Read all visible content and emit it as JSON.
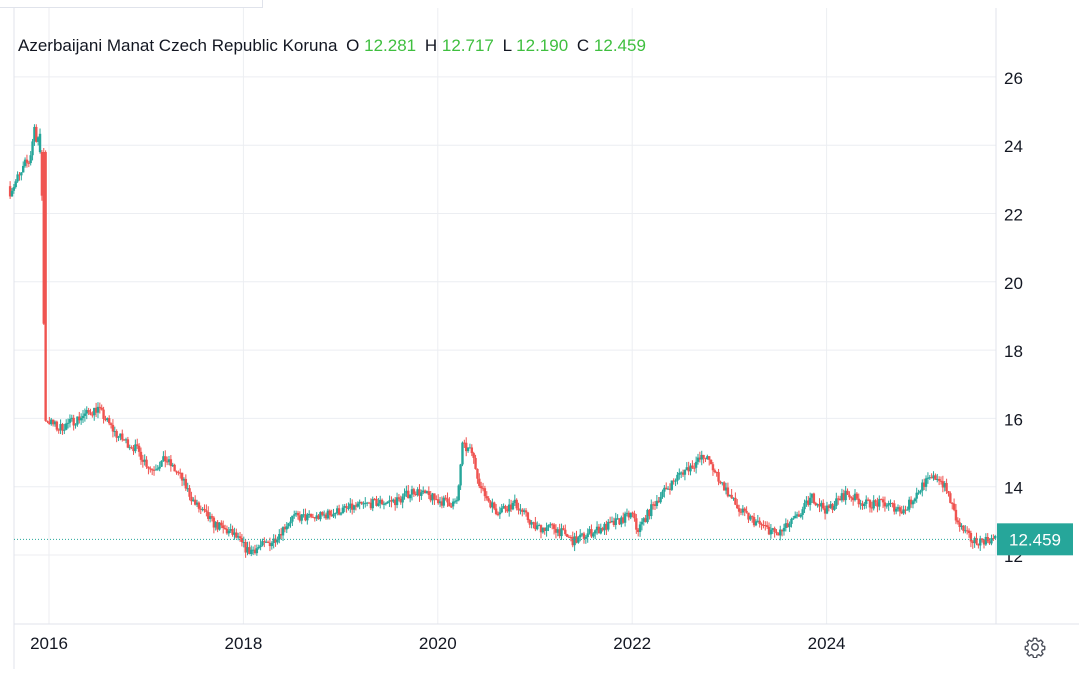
{
  "legend": {
    "symbol": "Azerbaijani Manat Czech Republic Koruna",
    "o_label": "O",
    "o_value": "12.281",
    "h_label": "H",
    "h_value": "12.717",
    "l_label": "L",
    "l_value": "12.190",
    "c_label": "C",
    "c_value": "12.459"
  },
  "last_price_label": "12.459",
  "icons": {
    "settings": "gear-icon"
  },
  "colors": {
    "up": "#26a69a",
    "down": "#ef5350",
    "legend_values": "#3fbf3f",
    "grid": "#eceef2"
  },
  "chart_data": {
    "type": "candlestick",
    "y_ticks": [
      "26",
      "24",
      "22",
      "20",
      "18",
      "16",
      "14",
      "12"
    ],
    "x_ticks": [
      "2016",
      "2018",
      "2020",
      "2022",
      "2024"
    ],
    "ylim": [
      10.0,
      28.0
    ],
    "xlim": [
      2015.6,
      2025.75
    ],
    "last_value": 12.459,
    "grid": true,
    "series_keyframes": [
      [
        2015.6,
        22.8
      ],
      [
        2015.7,
        23.0
      ],
      [
        2015.8,
        23.6
      ],
      [
        2015.85,
        24.5
      ],
      [
        2015.92,
        24.0
      ],
      [
        2015.96,
        16.0
      ],
      [
        2016.1,
        15.7
      ],
      [
        2016.3,
        16.0
      ],
      [
        2016.5,
        16.3
      ],
      [
        2016.7,
        15.5
      ],
      [
        2016.9,
        15.1
      ],
      [
        2017.05,
        14.5
      ],
      [
        2017.2,
        14.8
      ],
      [
        2017.35,
        14.3
      ],
      [
        2017.5,
        13.5
      ],
      [
        2017.7,
        12.9
      ],
      [
        2017.9,
        12.6
      ],
      [
        2018.05,
        12.1
      ],
      [
        2018.3,
        12.4
      ],
      [
        2018.5,
        13.1
      ],
      [
        2018.75,
        13.1
      ],
      [
        2019.0,
        13.3
      ],
      [
        2019.3,
        13.5
      ],
      [
        2019.6,
        13.6
      ],
      [
        2019.75,
        13.9
      ],
      [
        2020.0,
        13.6
      ],
      [
        2020.2,
        13.5
      ],
      [
        2020.25,
        15.2
      ],
      [
        2020.35,
        15.0
      ],
      [
        2020.45,
        13.9
      ],
      [
        2020.6,
        13.3
      ],
      [
        2020.8,
        13.5
      ],
      [
        2021.0,
        12.8
      ],
      [
        2021.2,
        12.8
      ],
      [
        2021.4,
        12.4
      ],
      [
        2021.6,
        12.7
      ],
      [
        2021.8,
        12.9
      ],
      [
        2022.0,
        13.2
      ],
      [
        2022.05,
        12.7
      ],
      [
        2022.25,
        13.6
      ],
      [
        2022.5,
        14.4
      ],
      [
        2022.75,
        14.9
      ],
      [
        2022.9,
        14.2
      ],
      [
        2023.1,
        13.3
      ],
      [
        2023.3,
        12.9
      ],
      [
        2023.5,
        12.6
      ],
      [
        2023.7,
        13.1
      ],
      [
        2023.85,
        13.7
      ],
      [
        2024.0,
        13.3
      ],
      [
        2024.2,
        13.8
      ],
      [
        2024.4,
        13.5
      ],
      [
        2024.6,
        13.5
      ],
      [
        2024.8,
        13.3
      ],
      [
        2025.0,
        14.1
      ],
      [
        2025.15,
        14.3
      ],
      [
        2025.25,
        13.8
      ],
      [
        2025.35,
        12.9
      ],
      [
        2025.5,
        12.4
      ],
      [
        2025.7,
        12.46
      ]
    ]
  }
}
